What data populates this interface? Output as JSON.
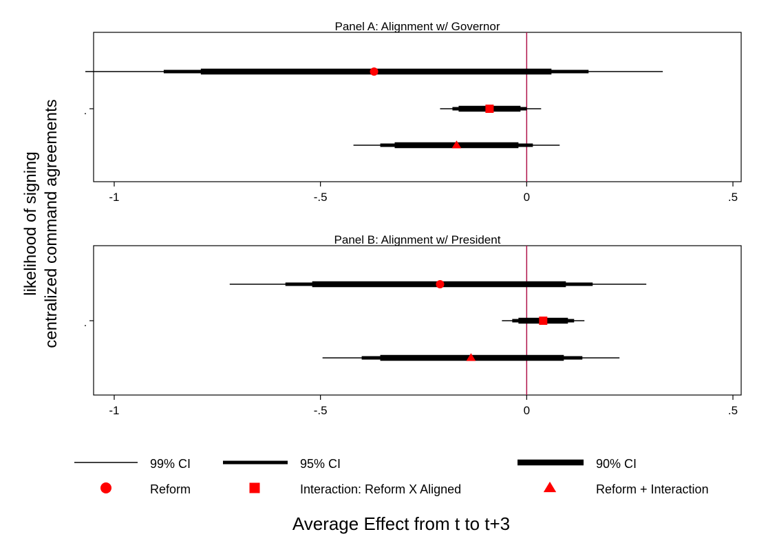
{
  "chart_data": {
    "type": "coefficient-plot",
    "ylabel_lines": [
      "likelihood of signing",
      "centralized command agreements"
    ],
    "xlabel": "Average Effect from t to t+3",
    "xlim": [
      -1.05,
      0.52
    ],
    "x_ticks": [
      -1,
      -0.5,
      0,
      0.5
    ],
    "x_tick_labels": [
      "-1",
      "-.5",
      "0",
      ".5"
    ],
    "y_tick_label": ".",
    "reference_line": 0,
    "reference_line_color": "#b0124a",
    "marker_color": "#ff0000",
    "panels": [
      {
        "title": "Panel A: Alignment w/ Governor",
        "estimates": [
          {
            "series": "Reform",
            "marker": "circle",
            "value": -0.37,
            "ci99": [
              -1.07,
              0.33
            ],
            "ci95": [
              -0.88,
              0.15
            ],
            "ci90": [
              -0.79,
              0.06
            ]
          },
          {
            "series": "Interaction: Reform X Aligned",
            "marker": "square",
            "value": -0.09,
            "ci99": [
              -0.21,
              0.035
            ],
            "ci95": [
              -0.18,
              0.0
            ],
            "ci90": [
              -0.165,
              -0.015
            ]
          },
          {
            "series": "Reform + Interaction",
            "marker": "triangle",
            "value": -0.17,
            "ci99": [
              -0.42,
              0.08
            ],
            "ci95": [
              -0.355,
              0.015
            ],
            "ci90": [
              -0.32,
              -0.02
            ]
          }
        ]
      },
      {
        "title": "Panel B: Alignment w/ President",
        "estimates": [
          {
            "series": "Reform",
            "marker": "circle",
            "value": -0.21,
            "ci99": [
              -0.72,
              0.29
            ],
            "ci95": [
              -0.585,
              0.16
            ],
            "ci90": [
              -0.52,
              0.095
            ]
          },
          {
            "series": "Interaction: Reform X Aligned",
            "marker": "square",
            "value": 0.04,
            "ci99": [
              -0.06,
              0.14
            ],
            "ci95": [
              -0.035,
              0.115
            ],
            "ci90": [
              -0.02,
              0.1
            ]
          },
          {
            "series": "Reform + Interaction",
            "marker": "triangle",
            "value": -0.135,
            "ci99": [
              -0.495,
              0.225
            ],
            "ci95": [
              -0.4,
              0.135
            ],
            "ci90": [
              -0.355,
              0.09
            ]
          }
        ]
      }
    ],
    "legend": {
      "placement": "bottom",
      "line_items": [
        {
          "label": "99% CI",
          "weight": "thin"
        },
        {
          "label": "95% CI",
          "weight": "medium"
        },
        {
          "label": "90% CI",
          "weight": "thick"
        }
      ],
      "marker_items": [
        {
          "label": "Reform",
          "marker": "circle"
        },
        {
          "label": "Interaction: Reform X Aligned",
          "marker": "square"
        },
        {
          "label": "Reform + Interaction",
          "marker": "triangle"
        }
      ]
    }
  }
}
